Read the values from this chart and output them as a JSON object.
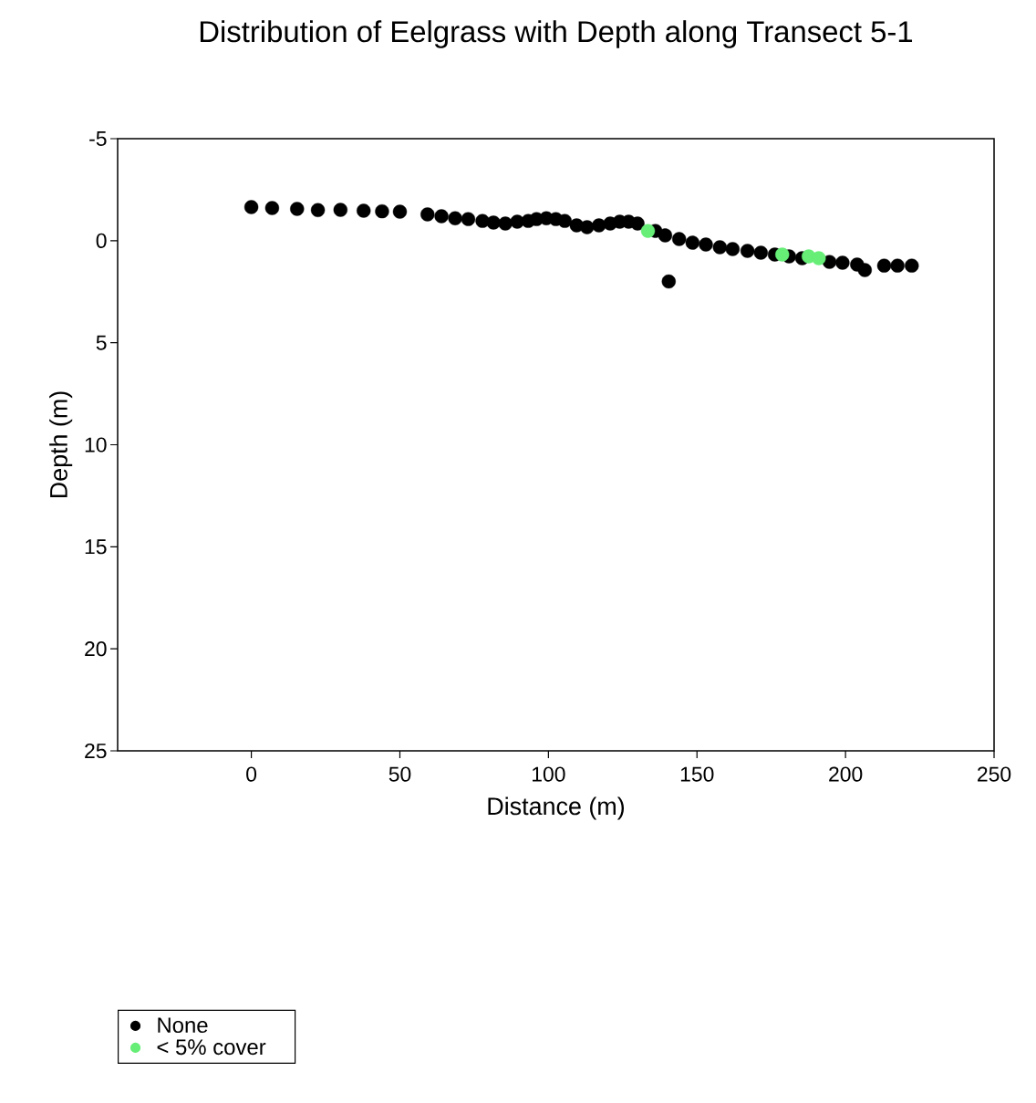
{
  "chart_data": {
    "type": "scatter",
    "title": "Distribution of Eelgrass with Depth along Transect 5-1",
    "xlabel": "Distance (m)",
    "ylabel": "Depth (m)",
    "xlim": [
      -45,
      250
    ],
    "xticks": [
      0,
      50,
      100,
      150,
      200,
      250
    ],
    "ylim": [
      25,
      -5
    ],
    "yticks": [
      -5,
      0,
      5,
      10,
      15,
      20,
      25
    ],
    "grid": false,
    "legend": "bottom left",
    "series": [
      {
        "name": "None",
        "color": "#000000",
        "x": [
          0,
          7,
          22.4,
          37.8,
          50,
          59.3,
          68.6,
          77.8,
          85.5,
          93.2,
          99.3,
          105.5,
          113,
          120.8,
          127,
          133,
          139.3,
          148.5,
          157.7,
          167,
          176.2,
          185.4,
          194.6,
          203.9,
          213,
          222.3,
          140.5,
          15.4,
          30,
          44,
          64,
          73,
          81.5,
          89.5,
          96,
          102.5,
          109.5,
          117,
          124,
          130,
          136,
          144,
          153,
          162,
          171.5,
          181,
          190,
          199,
          206.5,
          217.5
        ],
        "values": [
          -1.65,
          -1.6,
          -1.5,
          -1.47,
          -1.42,
          -1.29,
          -1.1,
          -0.97,
          -0.84,
          -0.97,
          -1.1,
          -0.97,
          -0.66,
          -0.84,
          -0.93,
          null,
          -0.26,
          0.1,
          0.32,
          0.5,
          0.68,
          0.86,
          1.04,
          1.17,
          1.22,
          1.22,
          2.0,
          -1.56,
          -1.51,
          -1.44,
          -1.2,
          -1.06,
          -0.89,
          -0.93,
          -1.06,
          -1.06,
          -0.75,
          -0.75,
          -0.93,
          -0.84,
          -0.48,
          -0.08,
          0.19,
          0.41,
          0.59,
          0.77,
          null,
          1.08,
          1.44,
          1.22
        ]
      },
      {
        "name": "< 5% cover",
        "color": "#66ee77",
        "x": [
          133.5,
          178.7,
          187.6,
          191
        ],
        "values": [
          -0.48,
          0.68,
          0.77,
          0.86
        ]
      }
    ]
  }
}
